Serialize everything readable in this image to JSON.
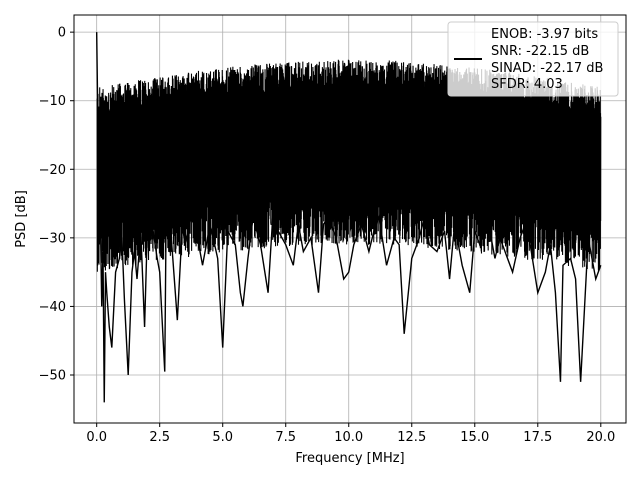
{
  "chart_data": {
    "type": "line",
    "title": "",
    "xlabel": "Frequency [MHz]",
    "ylabel": "PSD [dB]",
    "xlim": [
      -0.9,
      21.0
    ],
    "ylim": [
      -57,
      2.5
    ],
    "xticks": [
      0.0,
      2.5,
      5.0,
      7.5,
      10.0,
      12.5,
      15.0,
      17.5,
      20.0
    ],
    "xtick_labels": [
      "0.0",
      "2.5",
      "5.0",
      "7.5",
      "10.0",
      "12.5",
      "15.0",
      "17.5",
      "20.0"
    ],
    "yticks": [
      0,
      -10,
      -20,
      -30,
      -40,
      -50
    ],
    "ytick_labels": [
      "0",
      "−10",
      "−20",
      "−30",
      "−40",
      "−50"
    ],
    "grid": true,
    "legend": {
      "placement": "upper right",
      "entries": [
        "ENOB: -3.97 bits",
        "SNR: -22.15 dB",
        "SINAD: -22.17 dB",
        "SFDR: 4.03"
      ]
    },
    "series": [
      {
        "color": "#000000",
        "x": [
          0.0,
          0.05,
          0.1,
          0.15,
          0.2,
          0.25,
          0.3,
          0.35,
          0.4,
          0.5,
          0.6,
          0.75,
          0.9,
          1.0,
          1.1,
          1.25,
          1.4,
          1.5,
          1.6,
          1.75,
          1.9,
          2.0,
          2.2,
          2.4,
          2.5,
          2.7,
          2.75,
          2.9,
          3.0,
          3.2,
          3.4,
          3.5,
          3.8,
          4.0,
          4.2,
          4.5,
          4.8,
          5.0,
          5.2,
          5.5,
          5.7,
          5.8,
          6.0,
          6.2,
          6.5,
          6.8,
          7.0,
          7.2,
          7.5,
          7.8,
          8.0,
          8.2,
          8.5,
          8.8,
          9.0,
          9.2,
          9.5,
          9.8,
          10.0,
          10.2,
          10.5,
          10.8,
          11.0,
          11.2,
          11.5,
          11.8,
          12.0,
          12.2,
          12.5,
          12.8,
          13.0,
          13.2,
          13.5,
          13.8,
          14.0,
          14.2,
          14.5,
          14.8,
          15.0,
          15.2,
          15.5,
          15.8,
          16.0,
          16.2,
          16.5,
          16.8,
          17.0,
          17.2,
          17.5,
          17.8,
          18.0,
          18.2,
          18.4,
          18.5,
          18.8,
          19.0,
          19.2,
          19.5,
          19.8,
          20.0
        ],
        "y": [
          0,
          -14,
          -22,
          -28,
          -40,
          -32,
          -54,
          -35,
          -38,
          -43,
          -46,
          -35,
          -33,
          -30,
          -39,
          -50,
          -35,
          -32,
          -36,
          -29,
          -43,
          -30,
          -28,
          -33,
          -35,
          -49.5,
          -29,
          -27,
          -32,
          -42,
          -28,
          -31,
          -26,
          -30,
          -34,
          -28,
          -33,
          -46,
          -29,
          -31,
          -38,
          -40,
          -33,
          -27,
          -31,
          -38,
          -26,
          -29,
          -31,
          -34,
          -28,
          -32,
          -30,
          -38,
          -28,
          -27,
          -30,
          -36,
          -35,
          -31,
          -28,
          -32,
          -29,
          -27,
          -34,
          -30,
          -31,
          -44,
          -33,
          -30,
          -27,
          -31,
          -32,
          -29,
          -36,
          -28,
          -34,
          -38,
          -29,
          -31,
          -27,
          -33,
          -30,
          -32,
          -35,
          -30,
          -28,
          -31,
          -38,
          -35,
          -31,
          -38,
          -51,
          -34,
          -33,
          -36,
          -51,
          -30,
          -36,
          -34
        ]
      }
    ]
  }
}
